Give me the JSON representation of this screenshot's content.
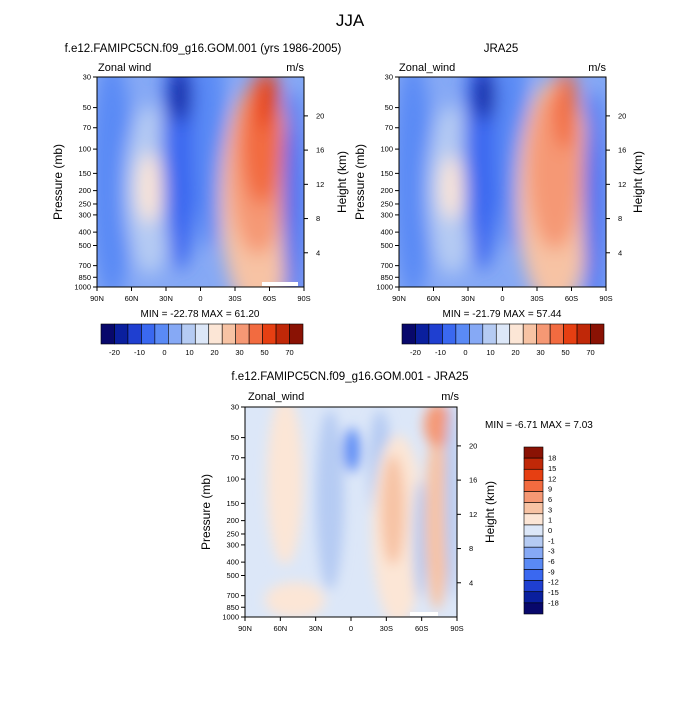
{
  "page_title": "JJA",
  "chart_data": [
    {
      "type": "heatmap",
      "title": "f.e12.FAMIPC5CN.f09_g16.GOM.001 (yrs 1986-2005)",
      "subtitle_left": "Zonal wind",
      "subtitle_right": "m/s",
      "xlabel": "",
      "ylabel": "Pressure (mb)",
      "ylabel_right": "Height (km)",
      "x_ticks": [
        "90N",
        "60N",
        "30N",
        "0",
        "30S",
        "60S",
        "90S"
      ],
      "x_tick_values": [
        90,
        60,
        30,
        0,
        -30,
        -60,
        -90
      ],
      "y_ticks": [
        "30",
        "50",
        "70",
        "100",
        "150",
        "200",
        "250",
        "300",
        "400",
        "500",
        "700",
        "850",
        "1000"
      ],
      "y_tick_values": [
        30,
        50,
        70,
        100,
        150,
        200,
        250,
        300,
        400,
        500,
        700,
        850,
        1000
      ],
      "y2_ticks": [
        "4",
        "8",
        "12",
        "16",
        "20"
      ],
      "y2_tick_values": [
        4,
        8,
        12,
        16,
        20
      ],
      "stats": "MIN = -22.78  MAX =  61.20",
      "min": -22.78,
      "max": 61.2,
      "colorbar_labels": [
        "-20",
        "-10",
        "0",
        "10",
        "20",
        "30",
        "50",
        "70"
      ]
    },
    {
      "type": "heatmap",
      "title": "JRA25",
      "subtitle_left": "Zonal_wind",
      "subtitle_right": "m/s",
      "xlabel": "",
      "ylabel": "Pressure (mb)",
      "ylabel_right": "Height (km)",
      "x_ticks": [
        "90N",
        "60N",
        "30N",
        "0",
        "30S",
        "60S",
        "90S"
      ],
      "x_tick_values": [
        90,
        60,
        30,
        0,
        -30,
        -60,
        -90
      ],
      "y_ticks": [
        "30",
        "50",
        "70",
        "100",
        "150",
        "200",
        "250",
        "300",
        "400",
        "500",
        "700",
        "850",
        "1000"
      ],
      "y_tick_values": [
        30,
        50,
        70,
        100,
        150,
        200,
        250,
        300,
        400,
        500,
        700,
        850,
        1000
      ],
      "y2_ticks": [
        "4",
        "8",
        "12",
        "16",
        "20"
      ],
      "y2_tick_values": [
        4,
        8,
        12,
        16,
        20
      ],
      "stats": "MIN = -21.79  MAX =  57.44",
      "min": -21.79,
      "max": 57.44,
      "colorbar_labels": [
        "-20",
        "-10",
        "0",
        "10",
        "20",
        "30",
        "50",
        "70"
      ]
    },
    {
      "type": "heatmap",
      "title": "f.e12.FAMIPC5CN.f09_g16.GOM.001 - JRA25",
      "subtitle_left": "Zonal_wind",
      "subtitle_right": "m/s",
      "xlabel": "",
      "ylabel": "Pressure (mb)",
      "ylabel_right": "Height (km)",
      "x_ticks": [
        "90N",
        "60N",
        "30N",
        "0",
        "30S",
        "60S",
        "90S"
      ],
      "x_tick_values": [
        90,
        60,
        30,
        0,
        -30,
        -60,
        -90
      ],
      "y_ticks": [
        "30",
        "50",
        "70",
        "100",
        "150",
        "200",
        "250",
        "300",
        "400",
        "500",
        "700",
        "850",
        "1000"
      ],
      "y_tick_values": [
        30,
        50,
        70,
        100,
        150,
        200,
        250,
        300,
        400,
        500,
        700,
        850,
        1000
      ],
      "y2_ticks": [
        "4",
        "8",
        "12",
        "16",
        "20"
      ],
      "y2_tick_values": [
        4,
        8,
        12,
        16,
        20
      ],
      "stats": "MIN =  -6.71  MAX =   7.03",
      "min": -6.71,
      "max": 7.03,
      "colorbar_labels": [
        "18",
        "15",
        "12",
        "9",
        "6",
        "3",
        "1",
        "0",
        "-1",
        "-3",
        "-6",
        "-9",
        "-12",
        "-15",
        "-18"
      ]
    }
  ],
  "colors": {
    "full_scale": [
      "#08086b",
      "#0a1f9e",
      "#1f3fd0",
      "#3a68f0",
      "#5a8af5",
      "#86a9f5",
      "#b5cbf3",
      "#dce7f8",
      "#fce6d6",
      "#f7c3a4",
      "#f59874",
      "#f26b40",
      "#e63f12",
      "#c02808",
      "#8a1204"
    ],
    "diff_scale": [
      "#08086b",
      "#0a1f9e",
      "#1f3fd0",
      "#3a68f0",
      "#5a8af5",
      "#86a9f5",
      "#b5cbf3",
      "#dce7f8",
      "#fce6d6",
      "#f7c3a4",
      "#f59874",
      "#f26b40",
      "#e63f12",
      "#c02808",
      "#8a1204"
    ]
  }
}
